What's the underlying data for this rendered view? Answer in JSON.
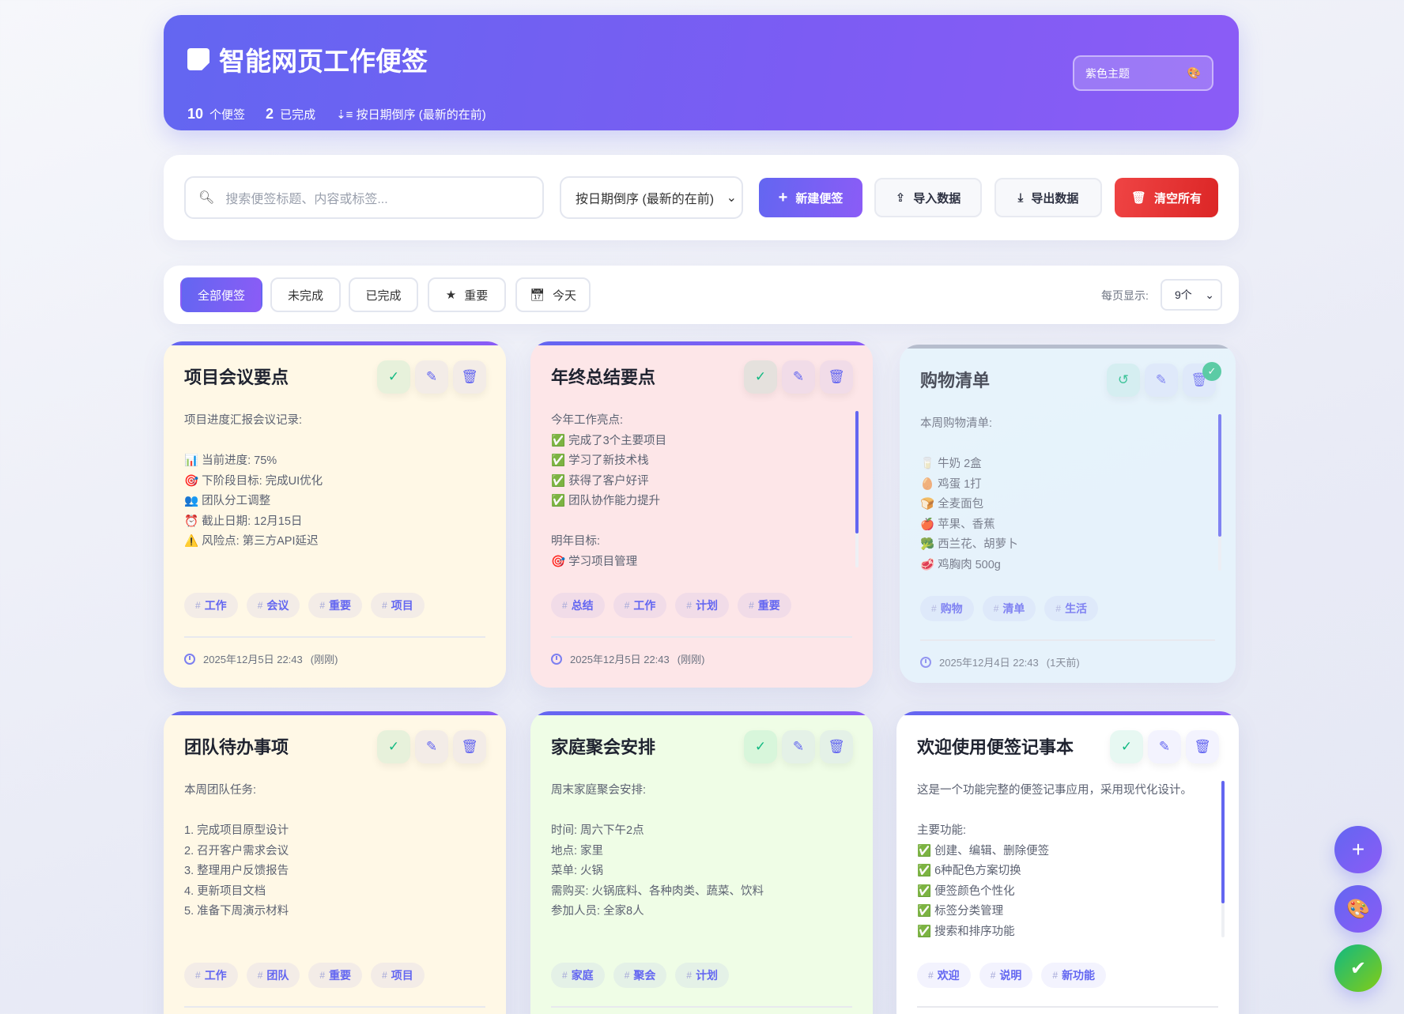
{
  "header": {
    "title": "智能网页工作便签",
    "note_count": "10",
    "note_count_label": "个便签",
    "done_count": "2",
    "done_label": "已完成",
    "sort_label": "按日期倒序 (最新的在前)",
    "theme_label": "紫色主题"
  },
  "toolbar": {
    "search_placeholder": "搜索便签标题、内容或标签...",
    "sort_value": "按日期倒序 (最新的在前)",
    "new_label": "新建便签",
    "import_label": "导入数据",
    "export_label": "导出数据",
    "clear_label": "清空所有"
  },
  "filters": {
    "items": [
      "全部便签",
      "未完成",
      "已完成",
      "重要",
      "今天"
    ],
    "active": "全部便签",
    "per_page_label": "每页显示:",
    "per_page_value": "9个"
  },
  "colors": {
    "accent": "#6366f1",
    "accent2": "#8b5cf6",
    "danger": "#e53935",
    "success": "#10b981"
  },
  "cards": [
    {
      "title": "项目会议要点",
      "bg": "#fff8e6",
      "done": false,
      "lines": [
        "项目进度汇报会议记录:",
        "",
        "📊 当前进度: 75%",
        "🎯 下阶段目标: 完成UI优化",
        "👥 团队分工调整",
        "⏰ 截止日期: 12月15日",
        "⚠️ 风险点: 第三方API延迟"
      ],
      "tags": [
        "工作",
        "会议",
        "重要",
        "项目"
      ],
      "date": "2025年12月5日 22:43",
      "ago": "(刚刚)",
      "scroll": false
    },
    {
      "title": "年终总结要点",
      "bg": "#fde6e8",
      "done": false,
      "lines": [
        "今年工作亮点:",
        "✅ 完成了3个主要项目",
        "✅ 学习了新技术栈",
        "✅ 获得了客户好评",
        "✅ 团队协作能力提升",
        "",
        "明年目标:",
        "🎯 学习项目管理"
      ],
      "tags": [
        "总结",
        "工作",
        "计划",
        "重要"
      ],
      "date": "2025年12月5日 22:43",
      "ago": "(刚刚)",
      "scroll": true
    },
    {
      "title": "购物清单",
      "bg": "#e6f5fd",
      "done": true,
      "lines": [
        "本周购物清单:",
        "",
        "🥛 牛奶 2盒",
        "🥚 鸡蛋 1打",
        "🍞 全麦面包",
        "🍎 苹果、香蕉",
        "🥦 西兰花、胡萝卜",
        "🥩 鸡胸肉 500g"
      ],
      "tags": [
        "购物",
        "清单",
        "生活"
      ],
      "date": "2025年12月4日 22:43",
      "ago": "(1天前)",
      "scroll": true
    },
    {
      "title": "团队待办事项",
      "bg": "#fff8e6",
      "done": false,
      "lines": [
        "本周团队任务:",
        "",
        "1. 完成项目原型设计",
        "2. 召开客户需求会议",
        "3. 整理用户反馈报告",
        "4. 更新项目文档",
        "5. 准备下周演示材料"
      ],
      "tags": [
        "工作",
        "团队",
        "重要",
        "项目"
      ],
      "scroll": false
    },
    {
      "title": "家庭聚会安排",
      "bg": "#effde6",
      "done": false,
      "lines": [
        "周末家庭聚会安排:",
        "",
        "时间: 周六下午2点",
        "地点: 家里",
        "菜单: 火锅",
        "需购买: 火锅底料、各种肉类、蔬菜、饮料",
        "参加人员: 全家8人"
      ],
      "tags": [
        "家庭",
        "聚会",
        "计划"
      ],
      "scroll": false
    },
    {
      "title": "欢迎使用便签记事本",
      "bg": "#ffffff",
      "done": false,
      "lines": [
        "这是一个功能完整的便签记事应用，采用现代化设计。",
        "",
        "主要功能:",
        "✅ 创建、编辑、删除便签",
        "✅ 6种配色方案切换",
        "✅ 便签颜色个性化",
        "✅ 标签分类管理",
        "✅ 搜索和排序功能"
      ],
      "tags": [
        "欢迎",
        "说明",
        "新功能"
      ],
      "scroll": true
    }
  ]
}
